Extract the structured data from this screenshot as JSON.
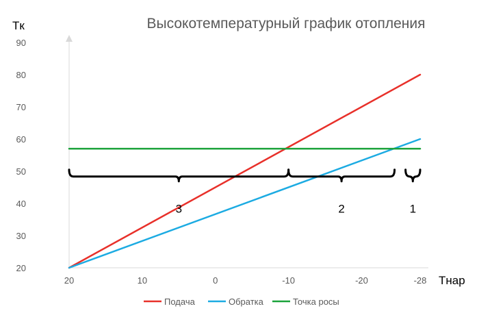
{
  "chart_data": {
    "type": "line",
    "title": "Высокотемпературный график отопления",
    "ylabel": "Tк",
    "xlabel": "Tнар",
    "x_ticks": [
      20,
      10,
      0,
      -10,
      -20,
      -28
    ],
    "y_ticks": [
      20,
      30,
      40,
      50,
      60,
      70,
      80,
      90
    ],
    "xlim": [
      20,
      -28
    ],
    "ylim": [
      20,
      90
    ],
    "x_reversed": true,
    "grid": false,
    "legend_position": "bottom",
    "series": [
      {
        "name": "Подача",
        "color": "#e8302a",
        "points": [
          [
            20,
            20
          ],
          [
            -28,
            80
          ]
        ]
      },
      {
        "name": "Обратка",
        "color": "#1cabe2",
        "points": [
          [
            20,
            20
          ],
          [
            -28,
            60
          ]
        ]
      },
      {
        "name": "Точка росы",
        "color": "#1aa23a",
        "points": [
          [
            20,
            57
          ],
          [
            -28,
            57
          ]
        ]
      }
    ],
    "zones": [
      {
        "label": "3",
        "from": 20,
        "to": -10
      },
      {
        "label": "2",
        "from": -10,
        "to": -24.5
      },
      {
        "label": "1",
        "from": -26,
        "to": -28
      }
    ],
    "zone_bracket_y": 49
  }
}
